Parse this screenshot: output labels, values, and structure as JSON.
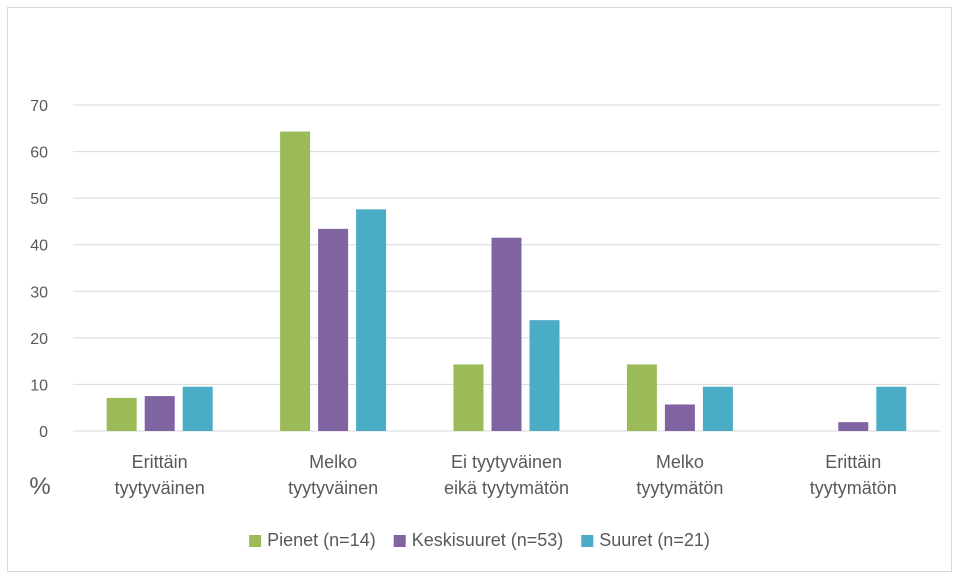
{
  "chart_data": {
    "type": "bar",
    "ylabel": "%",
    "ylim": [
      0,
      70
    ],
    "yticks": [
      0,
      10,
      20,
      30,
      40,
      50,
      60,
      70
    ],
    "grid": true,
    "legend_position": "bottom",
    "categories": [
      [
        "Erittäin",
        "tyytyväinen"
      ],
      [
        "Melko",
        "tyytyväinen"
      ],
      [
        "Ei tyytyväinen",
        "eikä tyytymätön"
      ],
      [
        "Melko",
        "tyytymätön"
      ],
      [
        "Erittäin",
        "tyytymätön"
      ]
    ],
    "series": [
      {
        "name": "Pienet (n=14)",
        "color": "#9bbb59",
        "values": [
          7.1,
          64.3,
          14.3,
          14.3,
          0
        ]
      },
      {
        "name": "Keskisuuret (n=53)",
        "color": "#8064a2",
        "values": [
          7.5,
          43.4,
          41.5,
          5.7,
          1.9
        ]
      },
      {
        "name": "Suuret (n=21)",
        "color": "#4bacc6",
        "values": [
          9.5,
          47.6,
          23.8,
          9.5,
          9.5
        ]
      }
    ]
  }
}
